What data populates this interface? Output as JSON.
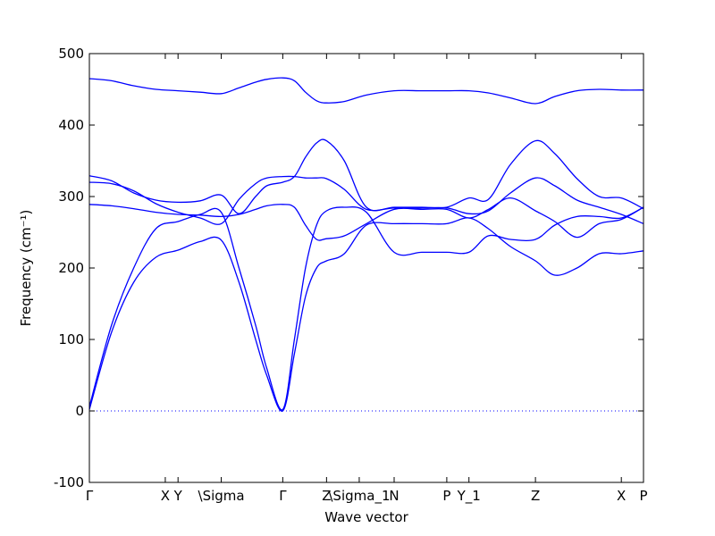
{
  "chart_data": {
    "type": "line",
    "xlabel": "Wave vector",
    "ylabel": "Frequency (cm⁻¹)",
    "ylim": [
      -100,
      500
    ],
    "grid": false,
    "y_ticks": [
      -100,
      0,
      100,
      200,
      300,
      400,
      500
    ],
    "x_ticks": [
      {
        "x": 0.0,
        "label": "Γ"
      },
      {
        "x": 0.137,
        "label": "X"
      },
      {
        "x": 0.16,
        "label": "Y"
      },
      {
        "x": 0.238,
        "label": "\\Sigma"
      },
      {
        "x": 0.349,
        "label": "Γ"
      },
      {
        "x": 0.428,
        "label": "Z"
      },
      {
        "x": 0.487,
        "label": "\\Sigma_1"
      },
      {
        "x": 0.55,
        "label": "N"
      },
      {
        "x": 0.645,
        "label": "P"
      },
      {
        "x": 0.685,
        "label": "Y_1"
      },
      {
        "x": 0.805,
        "label": "Z"
      },
      {
        "x": 0.96,
        "label": "X"
      },
      {
        "x": 1.0,
        "label": "P"
      }
    ],
    "zero_line": 0,
    "series_color": "#0000ff",
    "series": [
      {
        "x": [
          0,
          0.04,
          0.08,
          0.12,
          0.16,
          0.2,
          0.238,
          0.27,
          0.3,
          0.32,
          0.349,
          0.37,
          0.39,
          0.41,
          0.428,
          0.46,
          0.5,
          0.55,
          0.6,
          0.645,
          0.685,
          0.72,
          0.76,
          0.805,
          0.84,
          0.88,
          0.92,
          0.96,
          1.0
        ],
        "y": [
          2,
          110,
          180,
          215,
          225,
          237,
          239,
          180,
          100,
          50,
          0,
          80,
          160,
          200,
          210,
          220,
          260,
          262,
          262,
          262,
          270,
          255,
          230,
          210,
          190,
          200,
          220,
          220,
          224
        ]
      },
      {
        "x": [
          0,
          0.04,
          0.08,
          0.12,
          0.16,
          0.2,
          0.238,
          0.27,
          0.3,
          0.32,
          0.349,
          0.37,
          0.39,
          0.41,
          0.428,
          0.46,
          0.5,
          0.55,
          0.6,
          0.645,
          0.685,
          0.72,
          0.76,
          0.805,
          0.84,
          0.88,
          0.92,
          0.96,
          1.0
        ],
        "y": [
          6,
          120,
          200,
          255,
          265,
          275,
          278,
          200,
          120,
          60,
          2,
          100,
          200,
          260,
          280,
          285,
          278,
          222,
          222,
          222,
          222,
          245,
          240,
          240,
          260,
          272,
          272,
          270,
          285
        ]
      },
      {
        "x": [
          0,
          0.04,
          0.08,
          0.12,
          0.16,
          0.2,
          0.238,
          0.27,
          0.3,
          0.32,
          0.349,
          0.37,
          0.39,
          0.41,
          0.428,
          0.46,
          0.5,
          0.55,
          0.6,
          0.645,
          0.685,
          0.72,
          0.76,
          0.805,
          0.84,
          0.88,
          0.92,
          0.96,
          1.0
        ],
        "y": [
          289,
          287,
          283,
          278,
          275,
          274,
          272,
          275,
          282,
          287,
          289,
          285,
          260,
          240,
          241,
          245,
          262,
          282,
          282,
          282,
          270,
          282,
          298,
          280,
          265,
          243,
          262,
          268,
          285
        ]
      },
      {
        "x": [
          0,
          0.04,
          0.08,
          0.12,
          0.16,
          0.2,
          0.238,
          0.27,
          0.3,
          0.32,
          0.349,
          0.37,
          0.39,
          0.41,
          0.428,
          0.46,
          0.5,
          0.55,
          0.6,
          0.645,
          0.685,
          0.72,
          0.76,
          0.805,
          0.84,
          0.88,
          0.92,
          0.96,
          1.0
        ],
        "y": [
          320,
          318,
          308,
          290,
          278,
          270,
          262,
          296,
          318,
          326,
          328,
          328,
          326,
          326,
          325,
          310,
          282,
          284,
          284,
          284,
          276,
          280,
          305,
          326,
          315,
          295,
          285,
          275,
          262
        ]
      },
      {
        "x": [
          0,
          0.04,
          0.08,
          0.12,
          0.16,
          0.2,
          0.238,
          0.27,
          0.3,
          0.32,
          0.349,
          0.37,
          0.39,
          0.41,
          0.428,
          0.46,
          0.5,
          0.55,
          0.6,
          0.645,
          0.685,
          0.72,
          0.76,
          0.805,
          0.84,
          0.88,
          0.92,
          0.96,
          1.0
        ],
        "y": [
          329,
          322,
          305,
          295,
          292,
          294,
          302,
          276,
          300,
          315,
          320,
          328,
          355,
          375,
          378,
          350,
          285,
          285,
          285,
          285,
          298,
          296,
          345,
          378,
          360,
          325,
          300,
          298,
          283
        ]
      },
      {
        "x": [
          0,
          0.04,
          0.08,
          0.12,
          0.16,
          0.2,
          0.238,
          0.27,
          0.3,
          0.32,
          0.349,
          0.37,
          0.39,
          0.41,
          0.428,
          0.46,
          0.5,
          0.55,
          0.6,
          0.645,
          0.685,
          0.72,
          0.76,
          0.805,
          0.84,
          0.88,
          0.92,
          0.96,
          1.0
        ],
        "y": [
          465,
          462,
          455,
          450,
          448,
          446,
          444,
          452,
          460,
          464,
          466,
          462,
          446,
          434,
          431,
          433,
          442,
          448,
          448,
          448,
          448,
          445,
          438,
          430,
          440,
          448,
          450,
          449,
          449
        ]
      }
    ]
  }
}
